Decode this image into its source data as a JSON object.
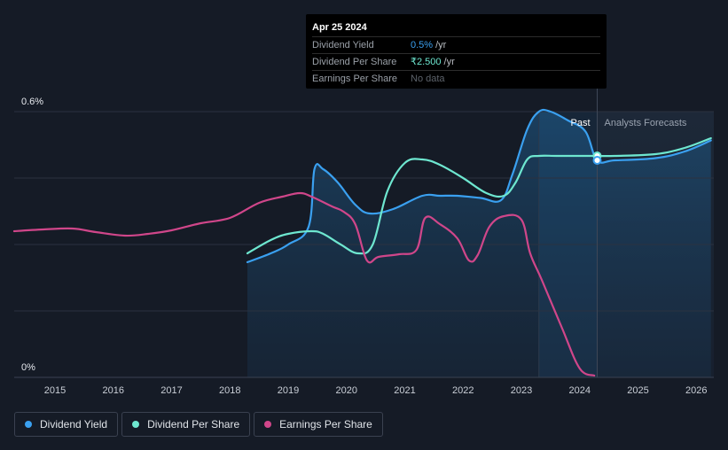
{
  "tooltip": {
    "date": "Apr 25 2024",
    "rows": [
      {
        "label": "Dividend Yield",
        "value": "0.5%",
        "unit": "/yr"
      },
      {
        "label": "Dividend Per Share",
        "value": "₹2.500",
        "unit": "/yr"
      },
      {
        "label": "Earnings Per Share",
        "value": "No data",
        "unit": ""
      }
    ]
  },
  "legend": [
    {
      "label": "Dividend Yield",
      "color": "#3aa0f0"
    },
    {
      "label": "Dividend Per Share",
      "color": "#6ee7d0"
    },
    {
      "label": "Earnings Per Share",
      "color": "#d0468a"
    }
  ],
  "chart_data": {
    "type": "line",
    "title": "",
    "xlabel": "",
    "ylabel": "",
    "x_ticks": [
      "2015",
      "2016",
      "2017",
      "2018",
      "2019",
      "2020",
      "2021",
      "2022",
      "2023",
      "2024",
      "2025",
      "2026"
    ],
    "y_tick_labels": [
      "0.6%",
      "0%"
    ],
    "xlim": [
      2014.3,
      2026.3
    ],
    "ylim": [
      0,
      0.6
    ],
    "divider_x": 2024.3,
    "past_label": "Past",
    "forecast_label": "Analysts Forecasts",
    "colors": {
      "yield": "#3aa0f0",
      "dps": "#6ee7d0",
      "eps": "#d0468a",
      "grid": "#2b3240",
      "bg": "#151b26"
    },
    "series": [
      {
        "name": "Dividend Yield",
        "unit": "% (left axis)",
        "x": [
          2018.3,
          2018.7,
          2019.0,
          2019.35,
          2019.45,
          2019.6,
          2019.85,
          2020.15,
          2020.4,
          2020.8,
          2021.3,
          2021.6,
          2021.9,
          2022.3,
          2022.65,
          2022.85,
          2023.1,
          2023.3,
          2023.5,
          2023.8,
          2024.1,
          2024.3,
          2024.6,
          2025.3,
          2025.8,
          2026.25
        ],
        "values": [
          0.26,
          0.28,
          0.3,
          0.34,
          0.47,
          0.47,
          0.44,
          0.39,
          0.37,
          0.38,
          0.41,
          0.41,
          0.41,
          0.405,
          0.4,
          0.46,
          0.56,
          0.6,
          0.6,
          0.58,
          0.555,
          0.49,
          0.49,
          0.495,
          0.51,
          0.535
        ]
      },
      {
        "name": "Dividend Per Share",
        "unit": "₹ (scaled)",
        "x": [
          2018.3,
          2018.7,
          2019.0,
          2019.4,
          2019.6,
          2019.9,
          2020.2,
          2020.45,
          2020.7,
          2021.0,
          2021.3,
          2021.6,
          2022.0,
          2022.4,
          2022.7,
          2022.9,
          2023.1,
          2023.3,
          2023.6,
          2024.0,
          2024.3,
          2024.6,
          2025.3,
          2025.8,
          2026.25
        ],
        "values": [
          1.4,
          1.55,
          1.62,
          1.65,
          1.62,
          1.5,
          1.4,
          1.5,
          2.1,
          2.42,
          2.46,
          2.4,
          2.25,
          2.08,
          2.05,
          2.2,
          2.46,
          2.5,
          2.5,
          2.5,
          2.5,
          2.5,
          2.52,
          2.59,
          2.7
        ]
      },
      {
        "name": "Earnings Per Share",
        "unit": "₹ (scaled)",
        "x": [
          2014.3,
          2014.8,
          2015.3,
          2015.7,
          2016.2,
          2016.6,
          2017.0,
          2017.5,
          2018.0,
          2018.5,
          2018.9,
          2019.2,
          2019.4,
          2019.75,
          2019.95,
          2020.15,
          2020.35,
          2020.55,
          2020.9,
          2021.2,
          2021.35,
          2021.6,
          2021.9,
          2022.1,
          2022.25,
          2022.45,
          2022.7,
          2023.0,
          2023.15,
          2023.35,
          2023.7,
          2024.0,
          2024.25
        ],
        "values": [
          1.65,
          1.67,
          1.68,
          1.64,
          1.6,
          1.62,
          1.66,
          1.74,
          1.8,
          1.97,
          2.04,
          2.08,
          2.04,
          1.93,
          1.87,
          1.73,
          1.32,
          1.36,
          1.39,
          1.44,
          1.8,
          1.73,
          1.57,
          1.32,
          1.38,
          1.7,
          1.82,
          1.78,
          1.4,
          1.1,
          0.55,
          0.1,
          0.02
        ]
      }
    ]
  }
}
